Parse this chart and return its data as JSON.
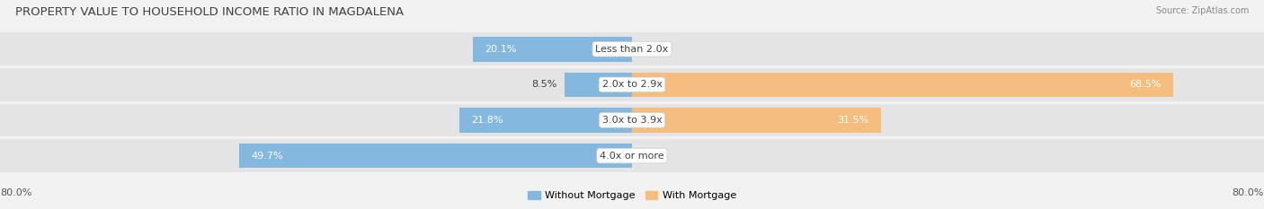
{
  "title": "PROPERTY VALUE TO HOUSEHOLD INCOME RATIO IN MAGDALENA",
  "source": "Source: ZipAtlas.com",
  "categories": [
    "Less than 2.0x",
    "2.0x to 2.9x",
    "3.0x to 3.9x",
    "4.0x or more"
  ],
  "without_mortgage": [
    20.1,
    8.5,
    21.8,
    49.7
  ],
  "with_mortgage": [
    0.0,
    68.5,
    31.5,
    0.0
  ],
  "x_min": -80.0,
  "x_max": 80.0,
  "color_without": "#85b8de",
  "color_with": "#f5be7e",
  "bg_color": "#f2f2f2",
  "bar_bg_color": "#e4e4e4",
  "title_color": "#404040",
  "source_color": "#888888",
  "label_color_dark": "#404040",
  "label_color_white": "#ffffff",
  "title_fontsize": 9.5,
  "source_fontsize": 7,
  "bar_label_fontsize": 8,
  "cat_label_fontsize": 8,
  "tick_fontsize": 8,
  "legend_fontsize": 8
}
